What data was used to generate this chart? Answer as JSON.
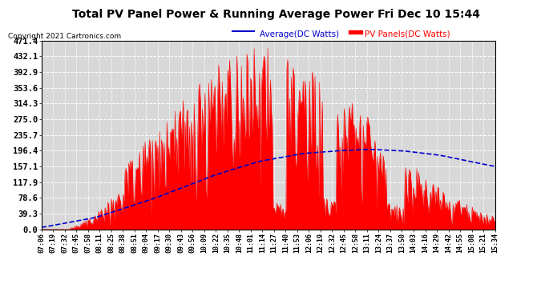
{
  "title": "Total PV Panel Power & Running Average Power Fri Dec 10 15:44",
  "copyright": "Copyright 2021 Cartronics.com",
  "legend_avg": "Average(DC Watts)",
  "legend_pv": "PV Panels(DC Watts)",
  "ylabel_values": [
    0.0,
    39.3,
    78.6,
    117.9,
    157.1,
    196.4,
    235.7,
    275.0,
    314.3,
    353.6,
    392.9,
    432.1,
    471.4
  ],
  "ymax": 471.4,
  "ymin": 0.0,
  "background_color": "#ffffff",
  "plot_bg_color": "#d8d8d8",
  "grid_color": "#ffffff",
  "fill_color": "#ff0000",
  "line_color": "#0000cc",
  "xtick_labels": [
    "07:06",
    "07:19",
    "07:32",
    "07:45",
    "07:58",
    "08:11",
    "08:25",
    "08:38",
    "08:51",
    "09:04",
    "09:17",
    "09:30",
    "09:43",
    "09:56",
    "10:09",
    "10:22",
    "10:35",
    "10:48",
    "11:01",
    "11:14",
    "11:27",
    "11:40",
    "11:53",
    "12:06",
    "12:19",
    "12:32",
    "12:45",
    "12:58",
    "13:11",
    "13:24",
    "13:37",
    "13:50",
    "14:03",
    "14:16",
    "14:29",
    "14:42",
    "14:55",
    "15:08",
    "15:21",
    "15:34"
  ],
  "avg_control_x": [
    0.0,
    0.12,
    0.25,
    0.38,
    0.48,
    0.58,
    0.65,
    0.72,
    0.8,
    0.88,
    1.0
  ],
  "avg_control_y": [
    5.0,
    30.0,
    78.0,
    135.0,
    170.0,
    190.0,
    196.0,
    200.0,
    196.0,
    185.0,
    157.0
  ]
}
